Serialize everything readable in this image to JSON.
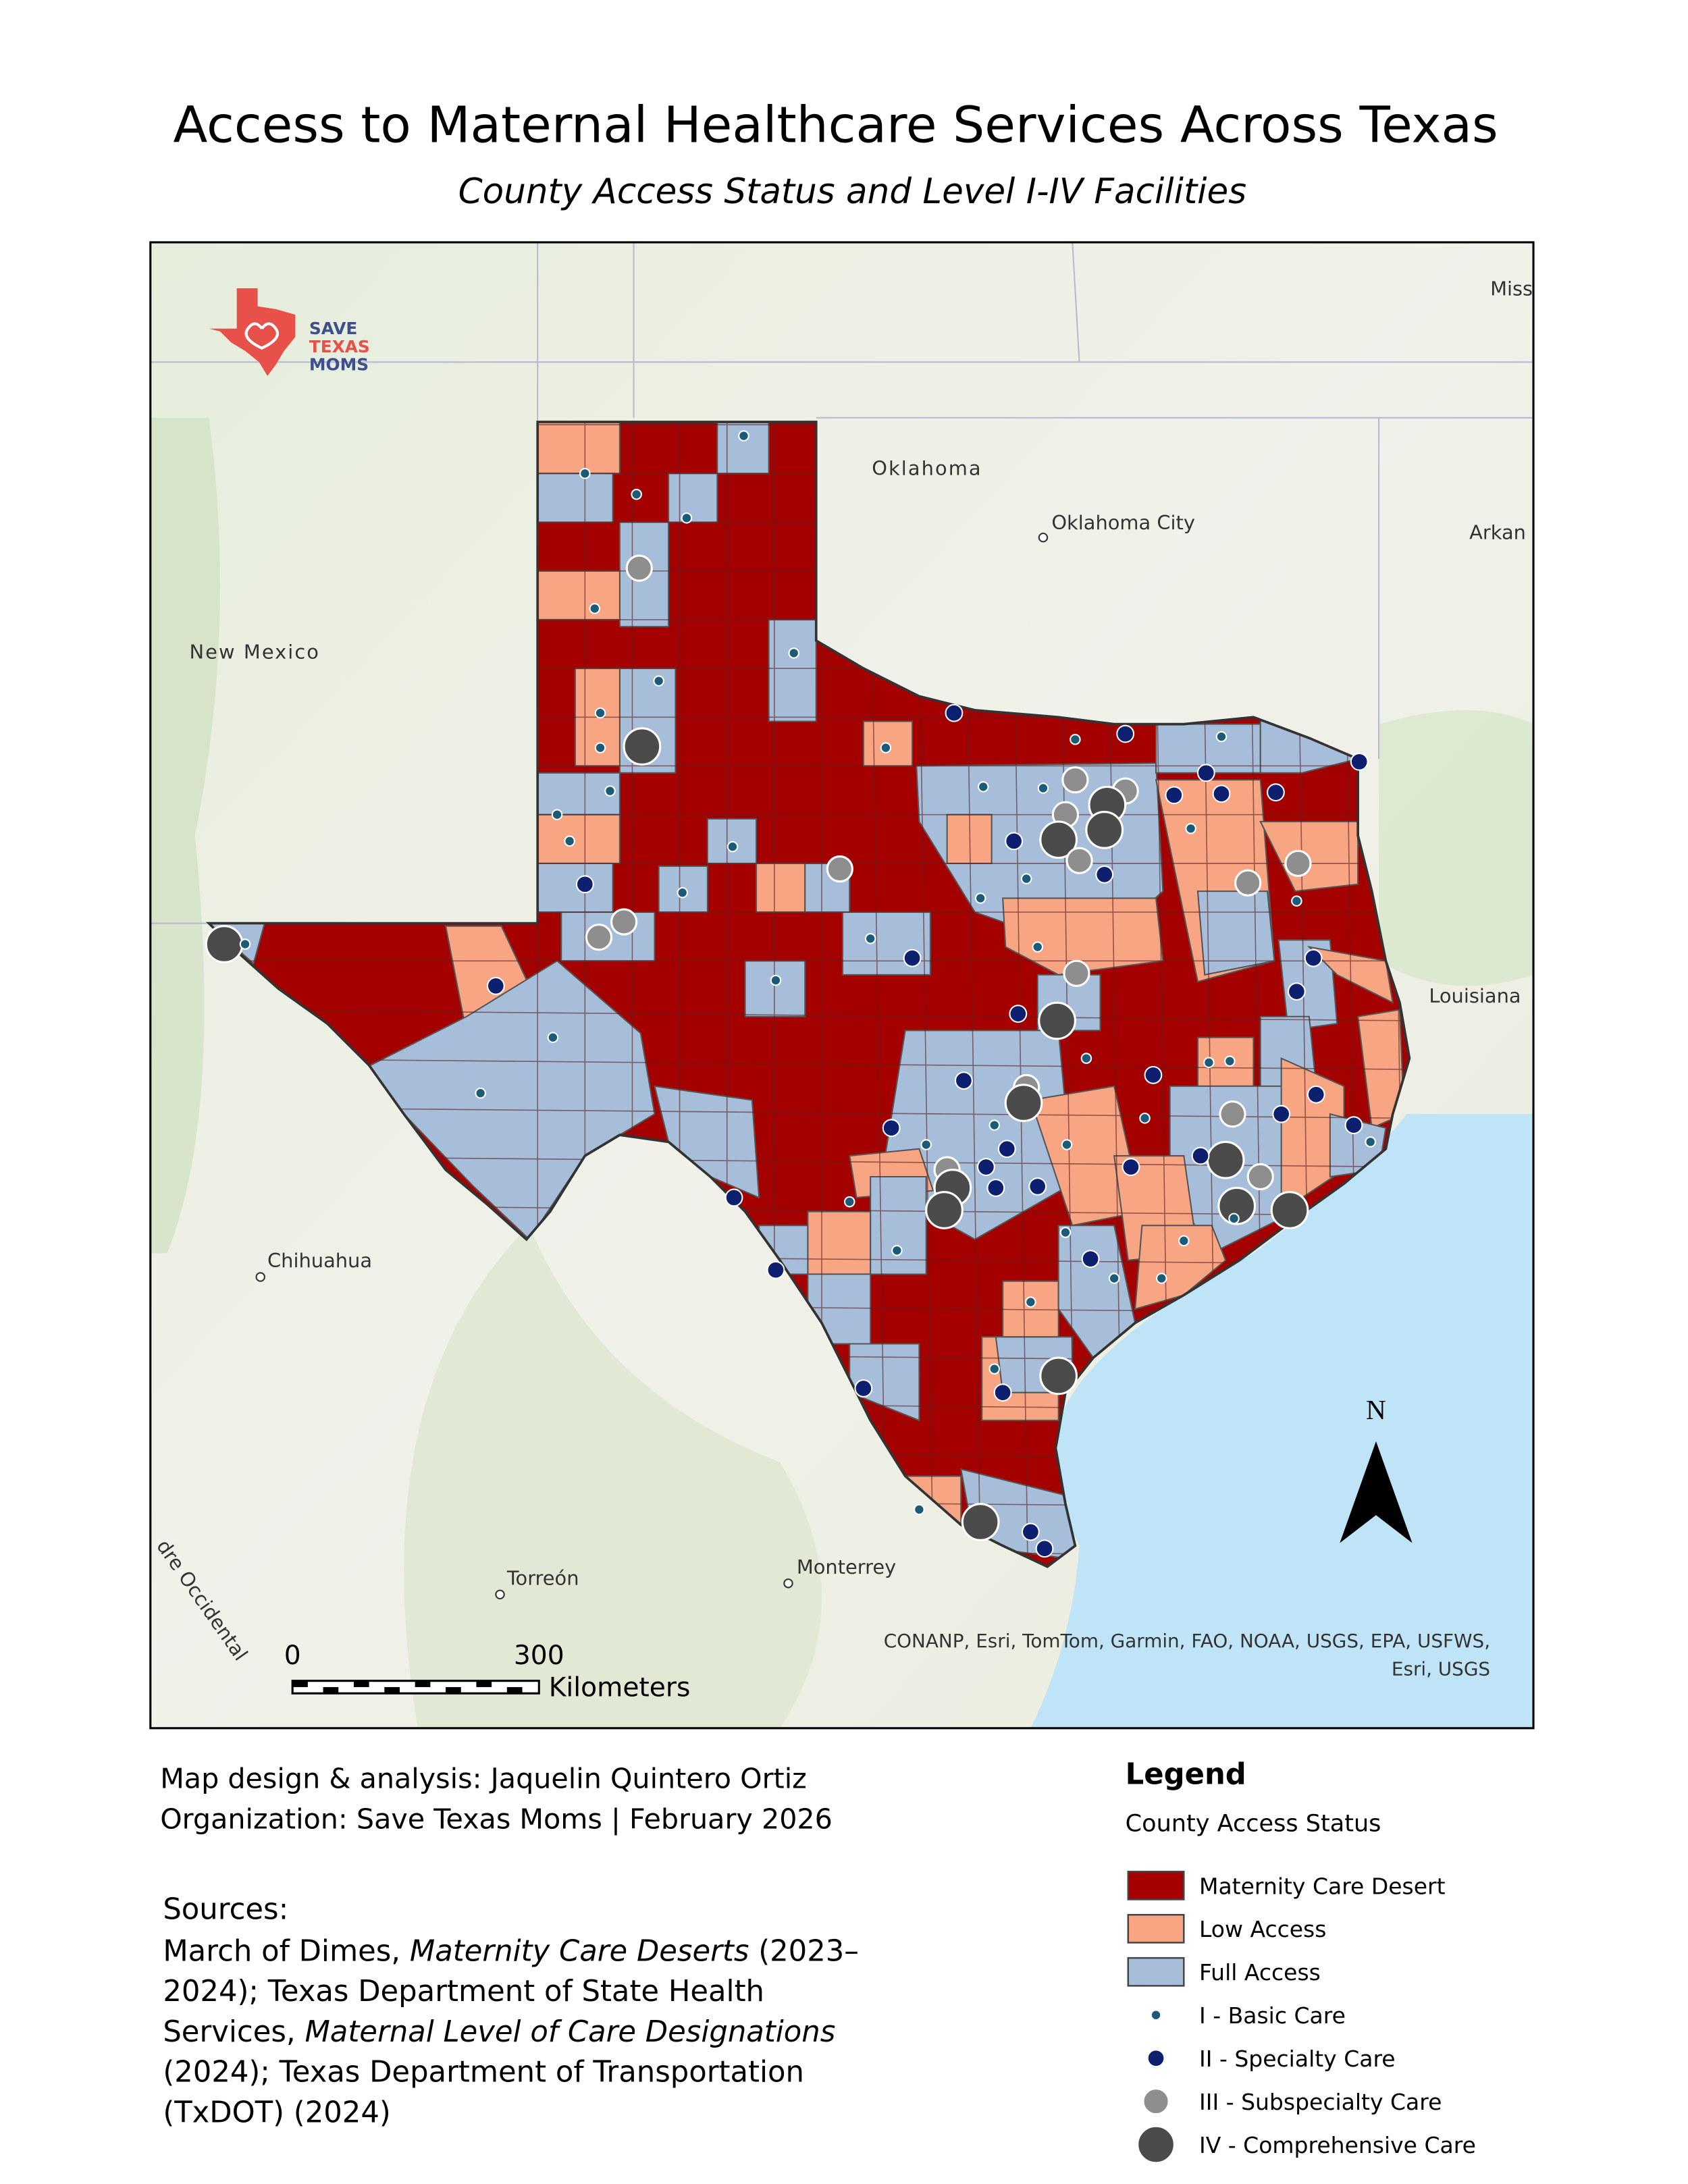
{
  "title": "Access to Maternal Healthcare Services Across Texas",
  "subtitle": "County Access Status and Level I-IV Facilities",
  "logo": [
    "SAVE",
    "TEXAS",
    "MOMS"
  ],
  "map_labels": {
    "miss": "Miss",
    "oklahoma": "Oklahoma",
    "oklahoma_city": "Oklahoma City",
    "arkansas": "Arkan",
    "new_mexico": "New Mexico",
    "louisiana": "Louisiana",
    "chihuahua": "Chihuahua",
    "torreon": "Torreón",
    "monterrey": "Monterrey",
    "sierra": "dre Occidental"
  },
  "north": "N",
  "scale_bar": {
    "ticks": [
      0,
      300
    ],
    "unit": "Kilometers"
  },
  "attribution": [
    "CONANP, Esri, TomTom, Garmin, FAO, NOAA, USGS, EPA, USFWS,",
    "Esri, USGS"
  ],
  "credits": [
    "Map design & analysis: Jaquelin Quintero Ortiz",
    "Organization: Save Texas Moms | February 2026"
  ],
  "sources": {
    "heading": "Sources:",
    "lines": [
      [
        "March of Dimes, ",
        "Maternity Care Deserts",
        " (2023–"
      ],
      [
        "2024); Texas Department of State Health"
      ],
      [
        "Services, ",
        "Maternal Level of Care Designations"
      ],
      [
        "(2024); Texas Department of Transportation"
      ],
      [
        "(TxDOT) (2024)"
      ]
    ]
  },
  "legend": {
    "title": "Legend",
    "subtitle": "County Access Status",
    "status": [
      {
        "label": "Maternity Care Desert",
        "color": "#a50000"
      },
      {
        "label": "Low Access",
        "color": "#f7a583"
      },
      {
        "label": "Full Access",
        "color": "#a7bedb"
      }
    ],
    "facilities": [
      {
        "label": "I - Basic Care",
        "color": "#1c5b78"
      },
      {
        "label": "II - Specialty Care",
        "color": "#0d1f6e"
      },
      {
        "label": "III - Subspecialty Care",
        "color": "#8e8e8e"
      },
      {
        "label": "IV - Comprehensive Care",
        "color": "#4b4b4b"
      }
    ]
  }
}
